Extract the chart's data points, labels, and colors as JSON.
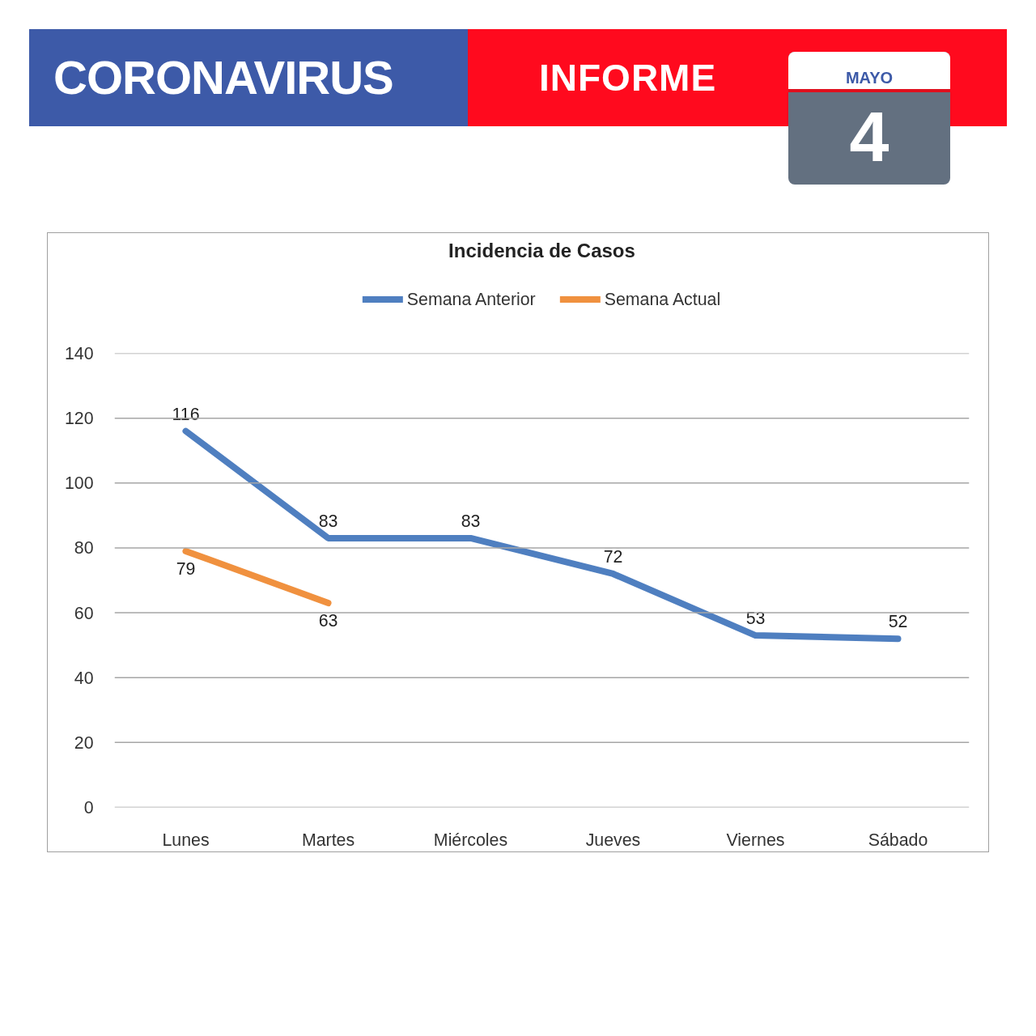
{
  "chart_data": {
    "type": "line",
    "title": "Incidencia de Casos",
    "annotations": [
      "CORONAVIRUS",
      "INFORME",
      "MAYO",
      "4"
    ],
    "categories": [
      "Lunes",
      "Martes",
      "Miércoles",
      "Jueves",
      "Viernes",
      "Sábado"
    ],
    "series": [
      {
        "name": "Semana Anterior",
        "color": "#4f7fc0",
        "values": [
          116,
          83,
          83,
          72,
          53,
          52
        ]
      },
      {
        "name": "Semana Actual",
        "color": "#f0913f",
        "values": [
          79,
          63,
          null,
          null,
          null,
          null
        ]
      }
    ],
    "ylim": [
      0,
      140
    ],
    "yticks": [
      0,
      20,
      40,
      60,
      80,
      100,
      120,
      140
    ],
    "grid": "y",
    "legend": "top",
    "data_labels": true
  }
}
